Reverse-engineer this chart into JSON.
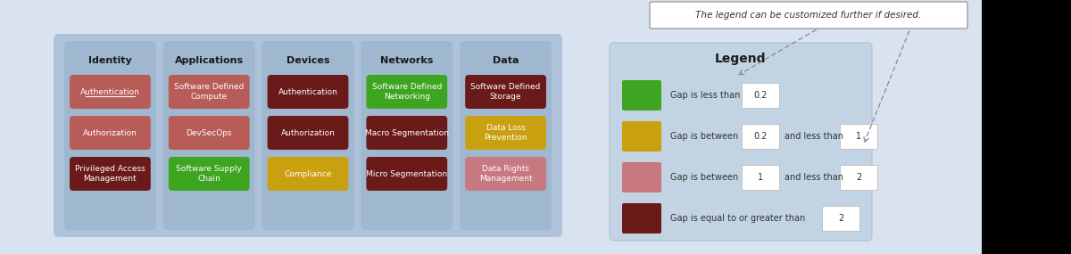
{
  "bg_color": "#d9e3ef",
  "panel_bg": "#aec3d9",
  "col_bg": "#9fb8d0",
  "legend_bg": "#c2d3e3",
  "colors": {
    "dark_red": "#6b1a1a",
    "medium_red": "#b85c58",
    "green": "#3ea520",
    "yellow": "#c9a010",
    "pink": "#c87880"
  },
  "columns": [
    {
      "title": "Identity",
      "items": [
        {
          "label": "Authentication",
          "color": "#b85c58",
          "underline": true
        },
        {
          "label": "Authorization",
          "color": "#b85c58",
          "underline": false
        },
        {
          "label": "Privileged Access\nManagement",
          "color": "#6b1a1a",
          "underline": false
        }
      ]
    },
    {
      "title": "Applications",
      "items": [
        {
          "label": "Software Defined\nCompute",
          "color": "#b85c58",
          "underline": false
        },
        {
          "label": "DevSecOps",
          "color": "#b85c58",
          "underline": false
        },
        {
          "label": "Software Supply\nChain",
          "color": "#3ea520",
          "underline": false
        }
      ]
    },
    {
      "title": "Devices",
      "items": [
        {
          "label": "Authentication",
          "color": "#6b1a1a",
          "underline": false
        },
        {
          "label": "Authorization",
          "color": "#6b1a1a",
          "underline": false
        },
        {
          "label": "Compliance",
          "color": "#c9a010",
          "underline": false
        }
      ]
    },
    {
      "title": "Networks",
      "items": [
        {
          "label": "Software Defined\nNetworking",
          "color": "#3ea520",
          "underline": false
        },
        {
          "label": "Macro Segmentation",
          "color": "#6b1a1a",
          "underline": false
        },
        {
          "label": "Micro Segmentation",
          "color": "#6b1a1a",
          "underline": false
        }
      ]
    },
    {
      "title": "Data",
      "items": [
        {
          "label": "Software Defined\nStorage",
          "color": "#6b1a1a",
          "underline": false
        },
        {
          "label": "Data Loss\nPrevention",
          "color": "#c9a010",
          "underline": false
        },
        {
          "label": "Data Rights\nManagement",
          "color": "#c87880",
          "underline": false
        }
      ]
    }
  ],
  "legend": {
    "title": "Legend",
    "rows": [
      {
        "color": "#3ea520",
        "text": "Gap is less than",
        "val1": "0.2",
        "text2": null,
        "val2": null
      },
      {
        "color": "#c9a010",
        "text": "Gap is between",
        "val1": "0.2",
        "text2": "and less than",
        "val2": "1"
      },
      {
        "color": "#c87880",
        "text": "Gap is between",
        "val1": "1",
        "text2": "and less than",
        "val2": "2"
      },
      {
        "color": "#6b1a1a",
        "text": "Gap is equal to or greater than",
        "val1": null,
        "text2": null,
        "val2": "2"
      }
    ]
  },
  "callout_text": "The legend can be customized further if desired."
}
